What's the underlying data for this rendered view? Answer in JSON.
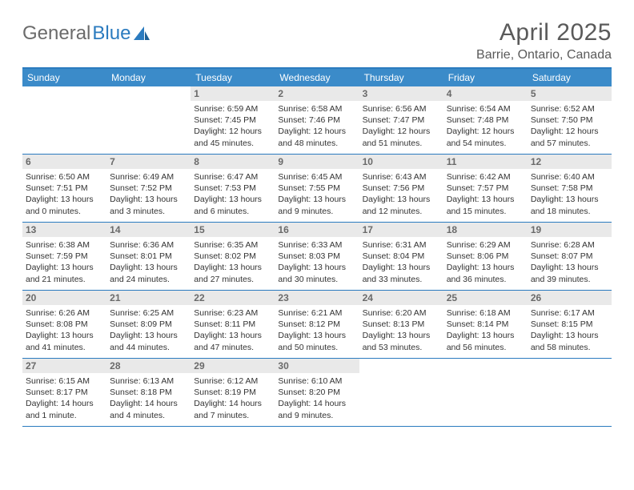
{
  "brand": {
    "part1": "General",
    "part2": "Blue"
  },
  "title": "April 2025",
  "location": "Barrie, Ontario, Canada",
  "colors": {
    "header_bg": "#3b8bc9",
    "rule": "#2b7bbf",
    "daynum_bg": "#e9e9e9",
    "text": "#333333",
    "muted": "#6a6a6a"
  },
  "day_names": [
    "Sunday",
    "Monday",
    "Tuesday",
    "Wednesday",
    "Thursday",
    "Friday",
    "Saturday"
  ],
  "weeks": [
    [
      {
        "n": "",
        "lines": [
          "",
          "",
          "",
          ""
        ]
      },
      {
        "n": "",
        "lines": [
          "",
          "",
          "",
          ""
        ]
      },
      {
        "n": "1",
        "lines": [
          "Sunrise: 6:59 AM",
          "Sunset: 7:45 PM",
          "Daylight: 12 hours",
          "and 45 minutes."
        ]
      },
      {
        "n": "2",
        "lines": [
          "Sunrise: 6:58 AM",
          "Sunset: 7:46 PM",
          "Daylight: 12 hours",
          "and 48 minutes."
        ]
      },
      {
        "n": "3",
        "lines": [
          "Sunrise: 6:56 AM",
          "Sunset: 7:47 PM",
          "Daylight: 12 hours",
          "and 51 minutes."
        ]
      },
      {
        "n": "4",
        "lines": [
          "Sunrise: 6:54 AM",
          "Sunset: 7:48 PM",
          "Daylight: 12 hours",
          "and 54 minutes."
        ]
      },
      {
        "n": "5",
        "lines": [
          "Sunrise: 6:52 AM",
          "Sunset: 7:50 PM",
          "Daylight: 12 hours",
          "and 57 minutes."
        ]
      }
    ],
    [
      {
        "n": "6",
        "lines": [
          "Sunrise: 6:50 AM",
          "Sunset: 7:51 PM",
          "Daylight: 13 hours",
          "and 0 minutes."
        ]
      },
      {
        "n": "7",
        "lines": [
          "Sunrise: 6:49 AM",
          "Sunset: 7:52 PM",
          "Daylight: 13 hours",
          "and 3 minutes."
        ]
      },
      {
        "n": "8",
        "lines": [
          "Sunrise: 6:47 AM",
          "Sunset: 7:53 PM",
          "Daylight: 13 hours",
          "and 6 minutes."
        ]
      },
      {
        "n": "9",
        "lines": [
          "Sunrise: 6:45 AM",
          "Sunset: 7:55 PM",
          "Daylight: 13 hours",
          "and 9 minutes."
        ]
      },
      {
        "n": "10",
        "lines": [
          "Sunrise: 6:43 AM",
          "Sunset: 7:56 PM",
          "Daylight: 13 hours",
          "and 12 minutes."
        ]
      },
      {
        "n": "11",
        "lines": [
          "Sunrise: 6:42 AM",
          "Sunset: 7:57 PM",
          "Daylight: 13 hours",
          "and 15 minutes."
        ]
      },
      {
        "n": "12",
        "lines": [
          "Sunrise: 6:40 AM",
          "Sunset: 7:58 PM",
          "Daylight: 13 hours",
          "and 18 minutes."
        ]
      }
    ],
    [
      {
        "n": "13",
        "lines": [
          "Sunrise: 6:38 AM",
          "Sunset: 7:59 PM",
          "Daylight: 13 hours",
          "and 21 minutes."
        ]
      },
      {
        "n": "14",
        "lines": [
          "Sunrise: 6:36 AM",
          "Sunset: 8:01 PM",
          "Daylight: 13 hours",
          "and 24 minutes."
        ]
      },
      {
        "n": "15",
        "lines": [
          "Sunrise: 6:35 AM",
          "Sunset: 8:02 PM",
          "Daylight: 13 hours",
          "and 27 minutes."
        ]
      },
      {
        "n": "16",
        "lines": [
          "Sunrise: 6:33 AM",
          "Sunset: 8:03 PM",
          "Daylight: 13 hours",
          "and 30 minutes."
        ]
      },
      {
        "n": "17",
        "lines": [
          "Sunrise: 6:31 AM",
          "Sunset: 8:04 PM",
          "Daylight: 13 hours",
          "and 33 minutes."
        ]
      },
      {
        "n": "18",
        "lines": [
          "Sunrise: 6:29 AM",
          "Sunset: 8:06 PM",
          "Daylight: 13 hours",
          "and 36 minutes."
        ]
      },
      {
        "n": "19",
        "lines": [
          "Sunrise: 6:28 AM",
          "Sunset: 8:07 PM",
          "Daylight: 13 hours",
          "and 39 minutes."
        ]
      }
    ],
    [
      {
        "n": "20",
        "lines": [
          "Sunrise: 6:26 AM",
          "Sunset: 8:08 PM",
          "Daylight: 13 hours",
          "and 41 minutes."
        ]
      },
      {
        "n": "21",
        "lines": [
          "Sunrise: 6:25 AM",
          "Sunset: 8:09 PM",
          "Daylight: 13 hours",
          "and 44 minutes."
        ]
      },
      {
        "n": "22",
        "lines": [
          "Sunrise: 6:23 AM",
          "Sunset: 8:11 PM",
          "Daylight: 13 hours",
          "and 47 minutes."
        ]
      },
      {
        "n": "23",
        "lines": [
          "Sunrise: 6:21 AM",
          "Sunset: 8:12 PM",
          "Daylight: 13 hours",
          "and 50 minutes."
        ]
      },
      {
        "n": "24",
        "lines": [
          "Sunrise: 6:20 AM",
          "Sunset: 8:13 PM",
          "Daylight: 13 hours",
          "and 53 minutes."
        ]
      },
      {
        "n": "25",
        "lines": [
          "Sunrise: 6:18 AM",
          "Sunset: 8:14 PM",
          "Daylight: 13 hours",
          "and 56 minutes."
        ]
      },
      {
        "n": "26",
        "lines": [
          "Sunrise: 6:17 AM",
          "Sunset: 8:15 PM",
          "Daylight: 13 hours",
          "and 58 minutes."
        ]
      }
    ],
    [
      {
        "n": "27",
        "lines": [
          "Sunrise: 6:15 AM",
          "Sunset: 8:17 PM",
          "Daylight: 14 hours",
          "and 1 minute."
        ]
      },
      {
        "n": "28",
        "lines": [
          "Sunrise: 6:13 AM",
          "Sunset: 8:18 PM",
          "Daylight: 14 hours",
          "and 4 minutes."
        ]
      },
      {
        "n": "29",
        "lines": [
          "Sunrise: 6:12 AM",
          "Sunset: 8:19 PM",
          "Daylight: 14 hours",
          "and 7 minutes."
        ]
      },
      {
        "n": "30",
        "lines": [
          "Sunrise: 6:10 AM",
          "Sunset: 8:20 PM",
          "Daylight: 14 hours",
          "and 9 minutes."
        ]
      },
      {
        "n": "",
        "lines": [
          "",
          "",
          "",
          ""
        ]
      },
      {
        "n": "",
        "lines": [
          "",
          "",
          "",
          ""
        ]
      },
      {
        "n": "",
        "lines": [
          "",
          "",
          "",
          ""
        ]
      }
    ]
  ]
}
